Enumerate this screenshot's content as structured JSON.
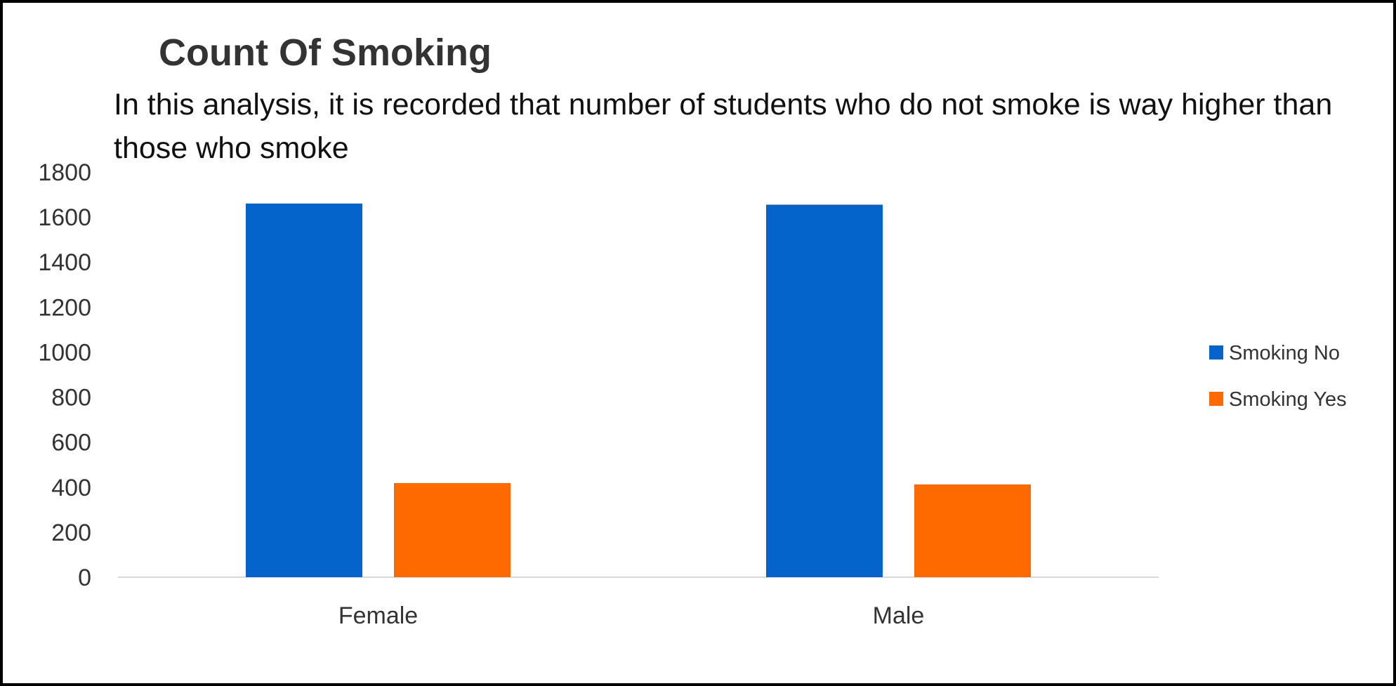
{
  "chart_data": {
    "type": "bar",
    "title": "Count Of Smoking",
    "subtitle": "In this analysis, it is recorded that number of students who do not smoke is way higher than those who smoke",
    "xlabel": "",
    "ylabel": "",
    "categories": [
      "Female",
      "Male"
    ],
    "series": [
      {
        "name": "Smoking No",
        "color": "#0563CC",
        "values": [
          1660,
          1655
        ]
      },
      {
        "name": "Smoking Yes",
        "color": "#FF6A00",
        "values": [
          418,
          412
        ]
      }
    ],
    "ylim": [
      0,
      1800
    ],
    "yticks": [
      "0",
      "200",
      "400",
      "600",
      "800",
      "1000",
      "1200",
      "1400",
      "1600",
      "1800"
    ],
    "grid": false,
    "legend_position": "right"
  }
}
